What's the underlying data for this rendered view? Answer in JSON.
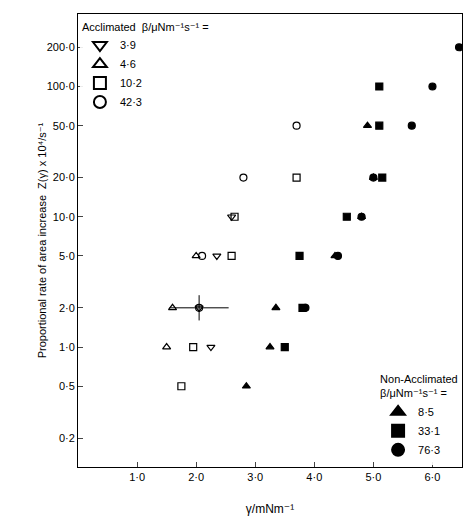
{
  "chart_data": {
    "type": "scatter",
    "x_label": "γ/mNm⁻¹",
    "y_label": "Proportional rate of area increase  Z(γ) x 10⁴/s⁻¹",
    "log": "y",
    "grid": false,
    "xlim": [
      0,
      6.5
    ],
    "xticks": [
      {
        "value": 1,
        "label": "1·0"
      },
      {
        "value": 2,
        "label": "2·0"
      },
      {
        "value": 3,
        "label": "3·0"
      },
      {
        "value": 4,
        "label": "4·0"
      },
      {
        "value": 5,
        "label": "5·0"
      },
      {
        "value": 6,
        "label": "6·0"
      }
    ],
    "ylim": [
      0.12,
      360
    ],
    "yticks": [
      {
        "value": 0.2,
        "label": "0·2"
      },
      {
        "value": 0.5,
        "label": "0·5"
      },
      {
        "value": 1,
        "label": "1·0"
      },
      {
        "value": 2,
        "label": "2·0"
      },
      {
        "value": 5,
        "label": "5·0"
      },
      {
        "value": 10,
        "label": "10·0"
      },
      {
        "value": 20,
        "label": "20·0"
      },
      {
        "value": 50,
        "label": "50·0"
      },
      {
        "value": 100,
        "label": "100·0"
      },
      {
        "value": 200,
        "label": "200·0"
      }
    ],
    "legend_groups": [
      {
        "title": [
          "Acclimated  β/μNm⁻¹s⁻¹ ="
        ],
        "legend": "upper left"
      },
      {
        "title": [
          "Non-Acclimated",
          "β/μNm⁻¹s⁻¹ ="
        ],
        "legend": "lower right"
      }
    ],
    "series": [
      {
        "name": "3·9",
        "group": 0,
        "color": "#000000",
        "marker": "triangle-down-open",
        "x": [
          2.25,
          2.05,
          2.35,
          2.6
        ],
        "values": [
          1,
          2,
          5,
          10
        ]
      },
      {
        "name": "4·6",
        "group": 0,
        "color": "#000000",
        "marker": "triangle-up-open",
        "x": [
          1.5,
          1.6,
          2.0
        ],
        "values": [
          1,
          2,
          5
        ]
      },
      {
        "name": "10·2",
        "group": 0,
        "color": "#000000",
        "marker": "square-open",
        "x": [
          1.75,
          1.95,
          2.6,
          2.65,
          3.7
        ],
        "values": [
          0.5,
          1,
          5,
          10,
          20
        ]
      },
      {
        "name": "42·3",
        "group": 0,
        "color": "#000000",
        "marker": "circle-open",
        "x": [
          2.05,
          2.1,
          2.8,
          3.7
        ],
        "values": [
          2,
          5,
          20,
          50
        ],
        "x_error": [
          0.5,
          null,
          null,
          null
        ],
        "y_error_plus": [
          0.5,
          null,
          null,
          null
        ],
        "y_error_minus": [
          0.4,
          null,
          null,
          null
        ]
      },
      {
        "name": "8·5",
        "group": 1,
        "color": "#000000",
        "marker": "triangle-up",
        "x": [
          2.85,
          3.25,
          3.35,
          4.35,
          4.8,
          5.0,
          4.9
        ],
        "values": [
          0.5,
          1,
          2,
          5,
          10,
          20,
          50
        ]
      },
      {
        "name": "33·1",
        "group": 1,
        "color": "#000000",
        "marker": "square",
        "x": [
          3.5,
          3.8,
          3.75,
          4.55,
          5.15,
          5.1,
          5.1
        ],
        "values": [
          1,
          2,
          5,
          10,
          20,
          50,
          100
        ]
      },
      {
        "name": "76·3",
        "group": 1,
        "color": "#000000",
        "marker": "circle",
        "x": [
          3.85,
          4.4,
          4.8,
          5.0,
          5.65,
          6.0,
          6.45
        ],
        "values": [
          2,
          5,
          10,
          20,
          50,
          100,
          200
        ]
      }
    ]
  }
}
